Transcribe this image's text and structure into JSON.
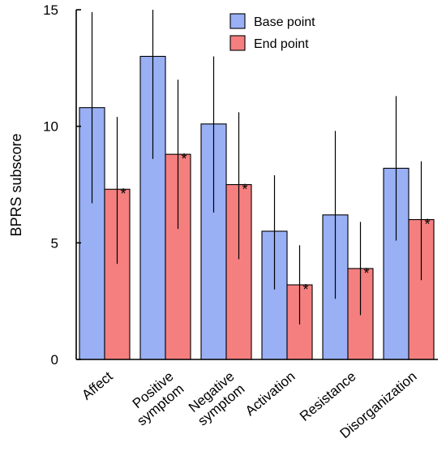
{
  "chart_data": {
    "type": "bar",
    "title": "",
    "xlabel": "",
    "ylabel": "BPRS subscore",
    "ylim": [
      0,
      15
    ],
    "yticks": [
      0,
      5,
      10,
      15
    ],
    "categories": [
      [
        "Affect"
      ],
      [
        "Positive",
        "symptom"
      ],
      [
        "Negative",
        "symptom"
      ],
      [
        "Activation"
      ],
      [
        "Resistance"
      ],
      [
        "Disorganization"
      ]
    ],
    "series": [
      {
        "name": "Base point",
        "color": "#99b0f5",
        "values": [
          10.8,
          13.0,
          10.1,
          5.5,
          6.2,
          8.2
        ],
        "error_low": [
          6.7,
          8.6,
          6.3,
          3.0,
          2.6,
          5.1
        ],
        "error_high": [
          14.9,
          15.0,
          13.0,
          7.9,
          9.8,
          11.3
        ]
      },
      {
        "name": "End point",
        "color": "#f57f7f",
        "values": [
          7.3,
          8.8,
          7.5,
          3.2,
          3.9,
          6.0
        ],
        "error_low": [
          4.1,
          5.6,
          4.3,
          1.5,
          1.9,
          3.4
        ],
        "error_high": [
          10.4,
          12.0,
          10.6,
          4.9,
          5.9,
          8.5
        ],
        "markers": [
          "*",
          "*",
          "*",
          "*",
          "*",
          "*"
        ]
      }
    ],
    "legend": {
      "position": "top-right"
    },
    "grid": false
  }
}
